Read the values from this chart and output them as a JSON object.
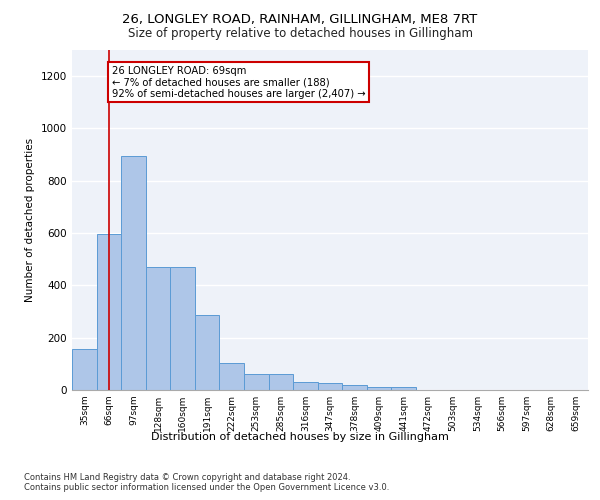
{
  "title": "26, LONGLEY ROAD, RAINHAM, GILLINGHAM, ME8 7RT",
  "subtitle": "Size of property relative to detached houses in Gillingham",
  "xlabel": "Distribution of detached houses by size in Gillingham",
  "ylabel": "Number of detached properties",
  "categories": [
    "35sqm",
    "66sqm",
    "97sqm",
    "128sqm",
    "160sqm",
    "191sqm",
    "222sqm",
    "253sqm",
    "285sqm",
    "316sqm",
    "347sqm",
    "378sqm",
    "409sqm",
    "441sqm",
    "472sqm",
    "503sqm",
    "534sqm",
    "566sqm",
    "597sqm",
    "628sqm",
    "659sqm"
  ],
  "values": [
    155,
    595,
    893,
    470,
    470,
    285,
    105,
    63,
    63,
    30,
    25,
    18,
    12,
    12,
    0,
    0,
    0,
    0,
    0,
    0,
    0
  ],
  "bar_color": "#aec6e8",
  "bar_edge_color": "#5b9bd5",
  "annotation_line": "26 LONGLEY ROAD: 69sqm",
  "annotation_line2": "← 7% of detached houses are smaller (188)",
  "annotation_line3": "92% of semi-detached houses are larger (2,407) →",
  "annotation_box_color": "#cc0000",
  "vline_x": 1,
  "ylim": [
    0,
    1300
  ],
  "yticks": [
    0,
    200,
    400,
    600,
    800,
    1000,
    1200
  ],
  "background_color": "#eef2f9",
  "grid_color": "#ffffff",
  "footnote1": "Contains HM Land Registry data © Crown copyright and database right 2024.",
  "footnote2": "Contains public sector information licensed under the Open Government Licence v3.0."
}
